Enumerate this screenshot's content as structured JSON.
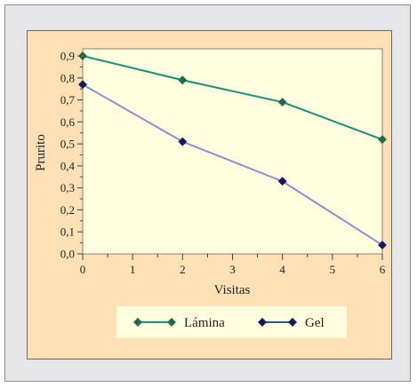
{
  "chart_data": {
    "type": "line",
    "xlabel": "Visitas",
    "ylabel": "Prurito",
    "xlim": [
      0,
      6
    ],
    "ylim": [
      0,
      0.9
    ],
    "x_ticks": [
      "0",
      "1",
      "2",
      "3",
      "4",
      "5",
      "6"
    ],
    "y_ticks": [
      "0,0",
      "0,1",
      "0,2",
      "0,3",
      "0,4",
      "0,5",
      "0,6",
      "0,7",
      "0,8",
      "0,9"
    ],
    "grid": false,
    "legend_position": "bottom",
    "series": [
      {
        "name": "Lámina",
        "color": "#1b8f78",
        "marker_color": "#1f6b4a",
        "x": [
          0,
          2,
          4,
          6
        ],
        "y": [
          0.9,
          0.79,
          0.69,
          0.52
        ]
      },
      {
        "name": "Gel",
        "color": "#8c8fd2",
        "marker_color": "#151a5e",
        "x": [
          0,
          2,
          4,
          6
        ],
        "y": [
          0.77,
          0.51,
          0.33,
          0.04
        ]
      }
    ]
  }
}
